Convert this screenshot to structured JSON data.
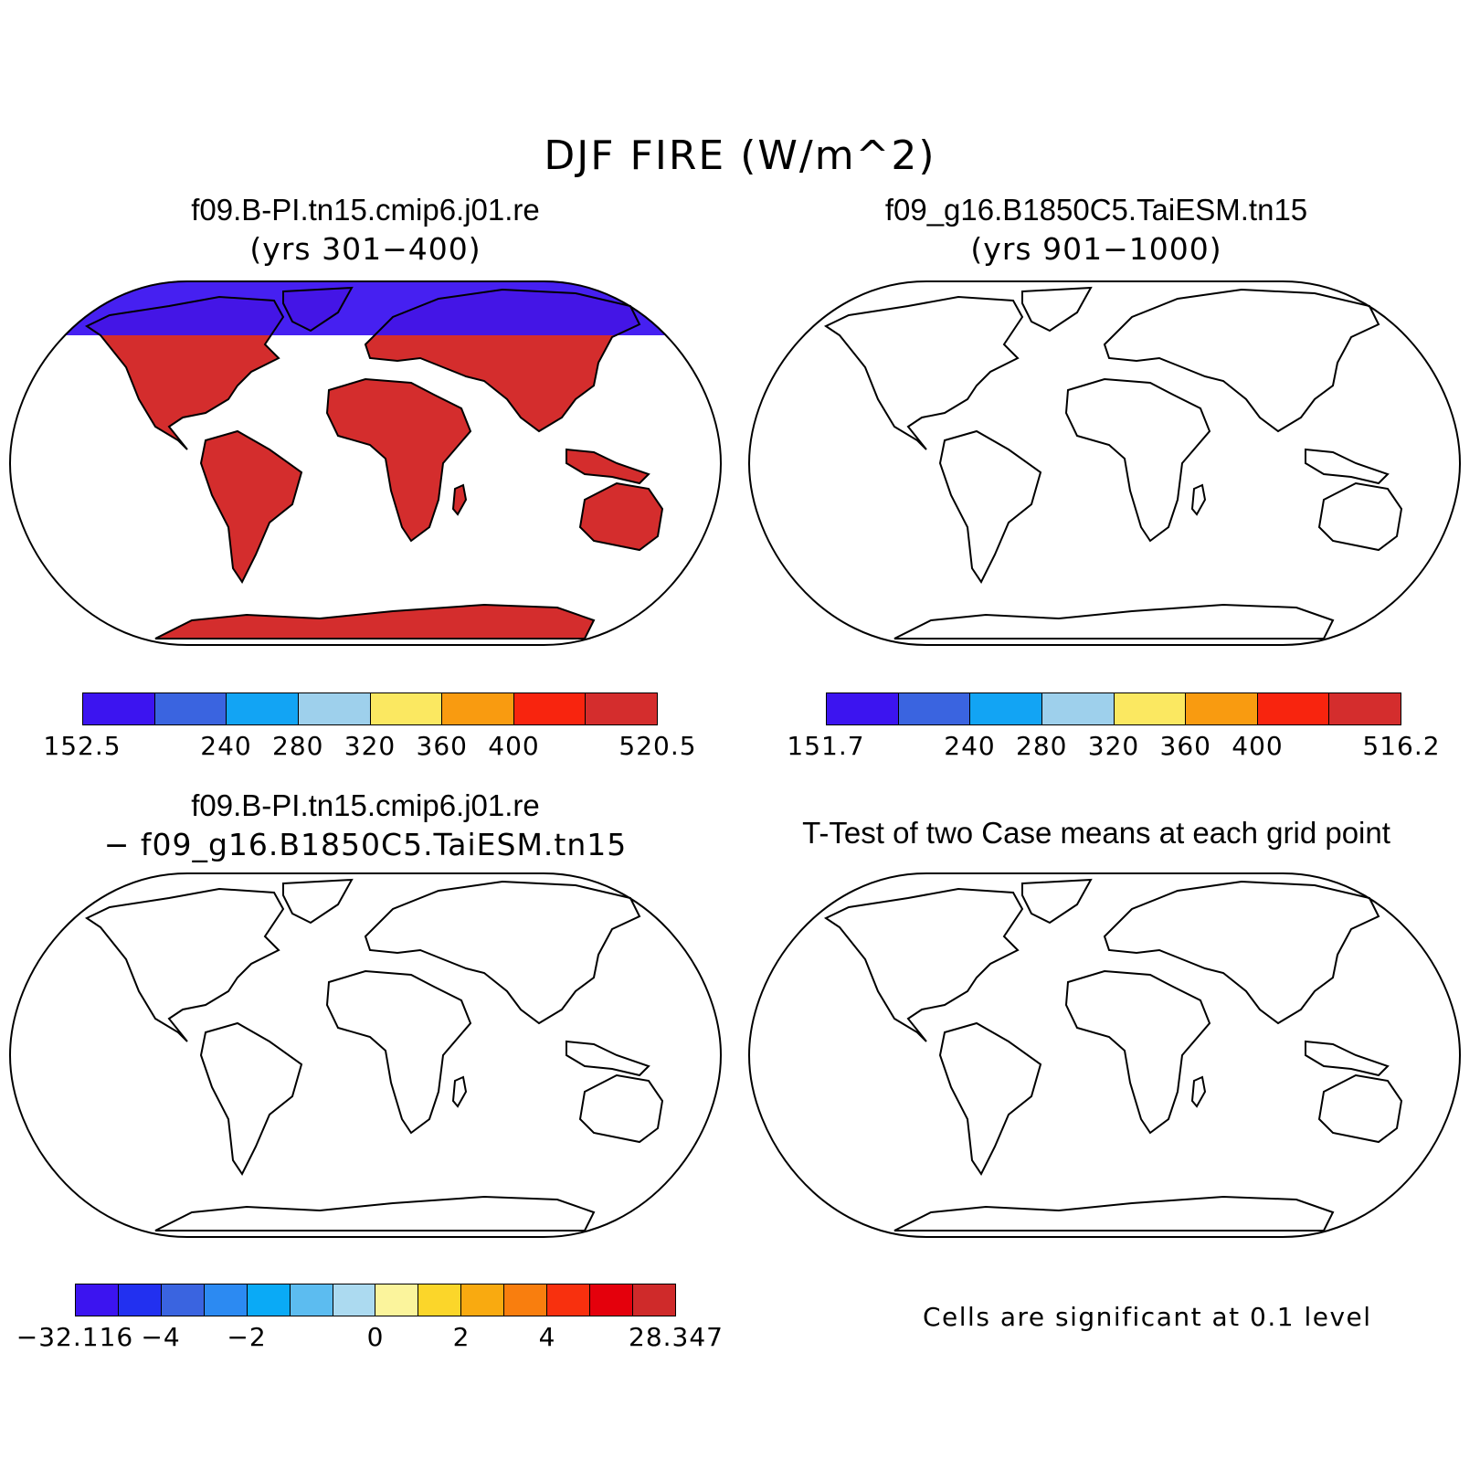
{
  "figure": {
    "title": "DJF FIRE (W/m^2)"
  },
  "panels": {
    "case1": {
      "title": "f09.B-PI.tn15.cmip6.j01.re",
      "subtitle": "(yrs 301−400)",
      "colorbar": {
        "colors": [
          "#3c14f0",
          "#3a64e0",
          "#12a4f4",
          "#9ed0ec",
          "#fbe861",
          "#f99b10",
          "#f8240e",
          "#d42d2d"
        ],
        "labels": [
          "152.5",
          "240",
          "280",
          "320",
          "360",
          "400",
          "520.5"
        ],
        "label_boundaries": [
          0,
          2,
          3,
          4,
          5,
          6,
          8
        ]
      }
    },
    "case2": {
      "title": "f09_g16.B1850C5.TaiESM.tn15",
      "subtitle": "(yrs 901−1000)",
      "colorbar": {
        "colors": [
          "#3c14f0",
          "#3a64e0",
          "#12a4f4",
          "#9ed0ec",
          "#fbe861",
          "#f99b10",
          "#f8240e",
          "#d42d2d"
        ],
        "labels": [
          "151.7",
          "240",
          "280",
          "320",
          "360",
          "400",
          "516.2"
        ],
        "label_boundaries": [
          0,
          2,
          3,
          4,
          5,
          6,
          8
        ]
      }
    },
    "diff": {
      "title": "f09.B-PI.tn15.cmip6.j01.re",
      "subtitle": "− f09_g16.B1850C5.TaiESM.tn15",
      "colorbar": {
        "colors": [
          "#3c14f0",
          "#2230f0",
          "#3a64e0",
          "#2c8af2",
          "#0aaaf6",
          "#5cbcf0",
          "#acdaf0",
          "#fbf49c",
          "#fbd62a",
          "#f9aa10",
          "#f97e0e",
          "#f8300e",
          "#e4000c",
          "#cf2a2a"
        ],
        "labels": [
          "−32.116",
          "−4",
          "−2",
          "0",
          "2",
          "4",
          "28.347"
        ],
        "label_boundaries": [
          0,
          2,
          4,
          7,
          9,
          11,
          14
        ]
      }
    },
    "ttest": {
      "title": "T-Test of two Case means at each grid point",
      "note": "Cells are significant at 0.1 level",
      "color": "#ff0000"
    }
  }
}
